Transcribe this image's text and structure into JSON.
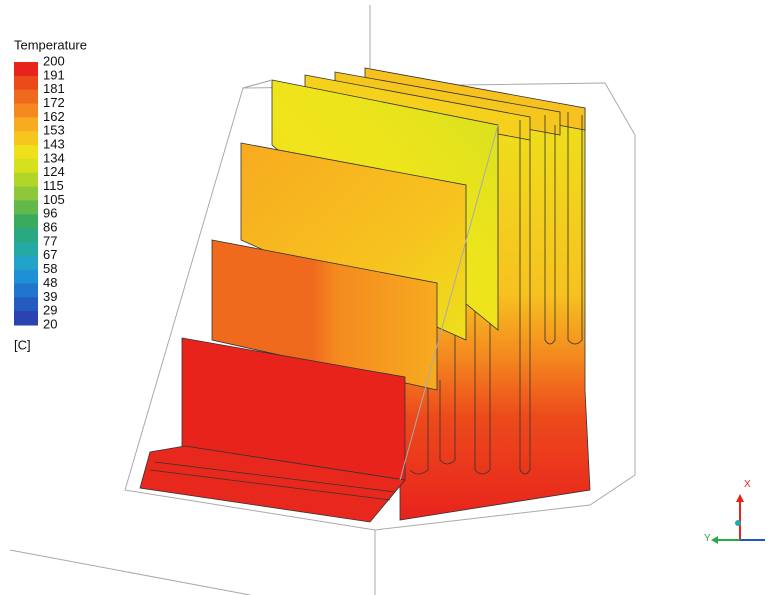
{
  "legend": {
    "title": "Temperature",
    "labels": [
      "200",
      "191",
      "181",
      "172",
      "162",
      "153",
      "143",
      "134",
      "124",
      "115",
      "105",
      "96",
      "86",
      "77",
      "67",
      "58",
      "48",
      "39",
      "29",
      "20"
    ],
    "colors": [
      "#e8231c",
      "#ed4a1c",
      "#f06a1e",
      "#f48a1f",
      "#f7ab1f",
      "#f5c61d",
      "#eee01b",
      "#d6e01f",
      "#b2d52a",
      "#8cc83a",
      "#62b84a",
      "#3aaa5e",
      "#2aa87f",
      "#25a9a4",
      "#22a3c8",
      "#1f8fd6",
      "#2275cc",
      "#255bbf",
      "#2a43b0"
    ],
    "unit": "[C]"
  },
  "triad": {
    "x_label": "X",
    "y_label": "Y"
  }
}
